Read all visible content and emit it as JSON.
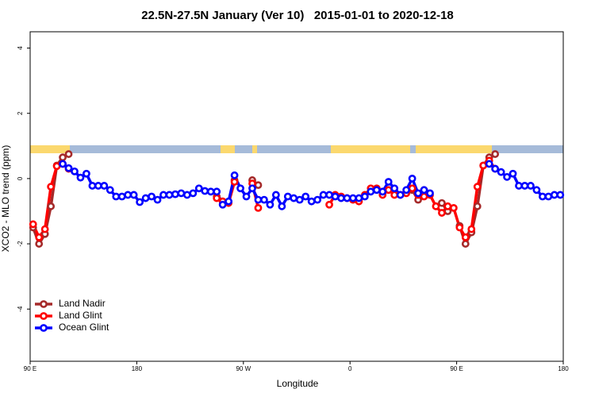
{
  "chart_data": {
    "type": "line",
    "title": "22.5N-27.5N January (Ver 10)   2015-01-01 to 2020-12-18",
    "x_label": "Longitude",
    "y_label": "XCO2 - MLO trend (ppm)",
    "xlim": [
      90,
      540
    ],
    "xticks": [
      {
        "value": 90,
        "label": "90 E"
      },
      180,
      {
        "value": 270,
        "label": "90 W"
      },
      {
        "value": 360,
        "label": "0"
      },
      {
        "value": 450,
        "label": "90 E"
      },
      {
        "value": 540,
        "label": "180"
      }
    ],
    "ylim": [
      -5.6,
      4.5
    ],
    "yticks": [
      -4,
      -2,
      0,
      2,
      4
    ],
    "legend": "bottom-left",
    "x": [
      92.5,
      97.5,
      102.5,
      107.5,
      112.5,
      117.5,
      122.5,
      127.5,
      132.5,
      137.5,
      142.5,
      147.5,
      152.5,
      157.5,
      162.5,
      167.5,
      172.5,
      177.5,
      182.5,
      187.5,
      192.5,
      197.5,
      202.5,
      207.5,
      212.5,
      217.5,
      222.5,
      227.5,
      232.5,
      237.5,
      242.5,
      247.5,
      252.5,
      257.5,
      262.5,
      267.5,
      272.5,
      277.5,
      282.5,
      287.5,
      292.5,
      297.5,
      302.5,
      307.5,
      312.5,
      317.5,
      322.5,
      327.5,
      332.5,
      337.5,
      342.5,
      347.5,
      352.5,
      357.5,
      362.5,
      367.5,
      372.5,
      377.5,
      382.5,
      387.5,
      392.5,
      397.5,
      402.5,
      407.5,
      412.5,
      417.5,
      422.5,
      427.5,
      432.5,
      437.5,
      442.5,
      447.5,
      452.5,
      457.5,
      462.5,
      467.5,
      472.5,
      477.5,
      482.5,
      487.5,
      492.5,
      497.5,
      502.5,
      507.5,
      512.5,
      517.5,
      522.5,
      527.5,
      532.5,
      537.5
    ],
    "series": [
      {
        "name": "Land Nadir",
        "color": "#a52a2a",
        "values": [
          -1.5,
          -2.0,
          -1.7,
          -0.85,
          0.4,
          0.65,
          0.75,
          null,
          null,
          null,
          null,
          null,
          null,
          null,
          null,
          null,
          null,
          null,
          null,
          null,
          null,
          null,
          null,
          null,
          null,
          null,
          null,
          null,
          null,
          null,
          null,
          -0.55,
          -0.7,
          null,
          -0.05,
          null,
          null,
          -0.05,
          -0.2,
          null,
          null,
          null,
          null,
          null,
          null,
          null,
          null,
          null,
          null,
          null,
          null,
          null,
          null,
          null,
          null,
          null,
          null,
          null,
          null,
          null,
          null,
          null,
          null,
          null,
          -0.35,
          -0.65,
          -0.35,
          null,
          null,
          -0.75,
          -1.0,
          null,
          -1.45,
          -2.0,
          -1.65,
          -0.85,
          0.4,
          0.65,
          0.75,
          null,
          null,
          null,
          null,
          null,
          null,
          null,
          null,
          null,
          null,
          null
        ]
      },
      {
        "name": "Land Glint",
        "color": "#ff0000",
        "values": [
          -1.4,
          -1.8,
          -1.55,
          -0.25,
          0.38,
          0.45,
          0.3,
          null,
          null,
          null,
          null,
          null,
          null,
          null,
          null,
          null,
          null,
          null,
          null,
          null,
          null,
          null,
          null,
          null,
          null,
          null,
          null,
          null,
          null,
          null,
          null,
          -0.6,
          -0.7,
          -0.75,
          -0.1,
          null,
          null,
          -0.15,
          -0.9,
          null,
          null,
          null,
          null,
          null,
          null,
          null,
          null,
          null,
          null,
          null,
          -0.8,
          -0.5,
          -0.55,
          -0.6,
          -0.65,
          -0.7,
          -0.5,
          -0.3,
          -0.3,
          -0.5,
          -0.35,
          -0.5,
          -0.5,
          -0.45,
          -0.3,
          -0.5,
          -0.55,
          -0.5,
          -0.85,
          -1.05,
          -0.85,
          -0.9,
          -1.5,
          -1.8,
          -1.55,
          -0.25,
          0.4,
          0.55,
          0.3,
          null,
          null,
          null,
          null,
          null,
          null,
          null,
          null,
          null,
          null,
          null
        ]
      },
      {
        "name": "Ocean Glint",
        "color": "#0000ff",
        "values": [
          null,
          null,
          null,
          null,
          null,
          0.45,
          0.32,
          0.22,
          0.03,
          0.15,
          -0.22,
          -0.22,
          -0.22,
          -0.35,
          -0.55,
          -0.55,
          -0.5,
          -0.5,
          -0.72,
          -0.6,
          -0.55,
          -0.65,
          -0.5,
          -0.5,
          -0.48,
          -0.45,
          -0.5,
          -0.45,
          -0.3,
          -0.38,
          -0.4,
          -0.4,
          -0.8,
          -0.7,
          0.1,
          -0.3,
          -0.55,
          -0.3,
          -0.65,
          -0.65,
          -0.8,
          -0.5,
          -0.85,
          -0.55,
          -0.6,
          -0.65,
          -0.55,
          -0.7,
          -0.65,
          -0.5,
          -0.5,
          -0.55,
          -0.6,
          -0.6,
          -0.6,
          -0.6,
          -0.55,
          -0.4,
          -0.35,
          -0.4,
          -0.1,
          -0.3,
          -0.5,
          -0.35,
          0.0,
          -0.45,
          -0.35,
          -0.45,
          null,
          null,
          null,
          null,
          null,
          null,
          null,
          null,
          null,
          0.45,
          0.3,
          0.2,
          0.05,
          0.15,
          -0.22,
          -0.22,
          -0.22,
          -0.35,
          -0.55,
          -0.55,
          -0.5,
          -0.5
        ]
      }
    ]
  }
}
